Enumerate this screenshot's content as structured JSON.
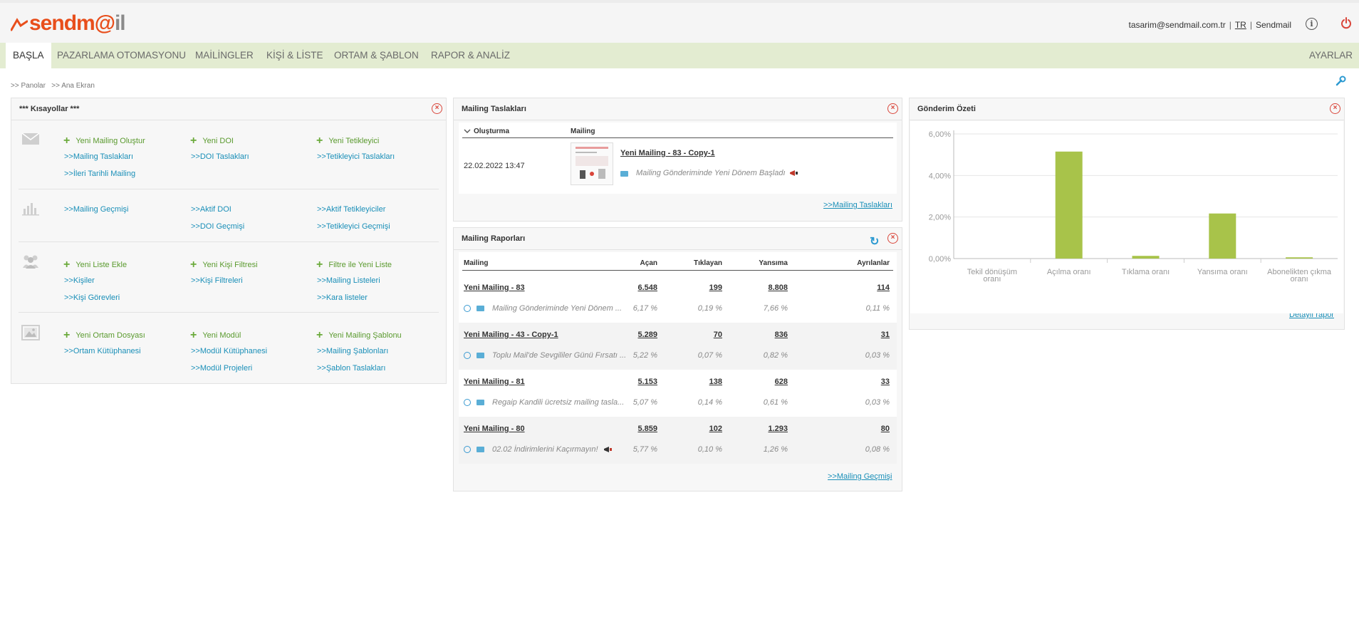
{
  "brand": {
    "part1": "send",
    "part2": "m@",
    "part3": "il"
  },
  "user": {
    "email": "tasarim@sendmail.com.tr",
    "lang": "TR",
    "account": "Sendmail"
  },
  "nav": {
    "items": [
      "BAŞLA",
      "PAZARLAMA OTOMASYONU",
      "MAİLİNGLER",
      "KİŞİ & LİSTE",
      "ORTAM & ŞABLON",
      "RAPOR & ANALİZ"
    ],
    "settings": "AYARLAR"
  },
  "breadcrumb": {
    "item1": ">> Panolar",
    "item2": ">> Ana Ekran"
  },
  "shortcuts": {
    "title": "*** Kısayollar ***",
    "row1": {
      "col1_add": "Yeni Mailing Oluştur",
      "col1_l1": ">>Mailing Taslakları",
      "col1_l2": ">>İleri Tarihli Mailing",
      "col2_add": "Yeni DOI",
      "col2_l1": ">>DOI Taslakları",
      "col3_add": "Yeni Tetikleyici",
      "col3_l1": ">>Tetikleyici Taslakları"
    },
    "row2": {
      "col1_l1": ">>Mailing Geçmişi",
      "col2_l1": ">>Aktif DOI",
      "col2_l2": ">>DOI Geçmişi",
      "col3_l1": ">>Aktif Tetikleyiciler",
      "col3_l2": ">>Tetikleyici Geçmişi"
    },
    "row3": {
      "col1_add": "Yeni Liste Ekle",
      "col1_l1": ">>Kişiler",
      "col1_l2": ">>Kişi Görevleri",
      "col2_add": "Yeni Kişi Filtresi",
      "col2_l1": ">>Kişi Filtreleri",
      "col3_add": "Filtre ile Yeni Liste",
      "col3_l1": ">>Mailing Listeleri",
      "col3_l2": ">>Kara listeler"
    },
    "row4": {
      "col1_add": "Yeni Ortam Dosyası",
      "col1_l1": ">>Ortam Kütüphanesi",
      "col2_add": "Yeni Modül",
      "col2_l1": ">>Modül Kütüphanesi",
      "col2_l2": ">>Modül Projeleri",
      "col3_add": "Yeni Mailing Şablonu",
      "col3_l1": ">>Mailing Şablonları",
      "col3_l2": ">>Şablon Taslakları"
    }
  },
  "drafts": {
    "title": "Mailing Taslakları",
    "col_created": "Oluşturma",
    "col_mailing": "Mailing",
    "row": {
      "date": "22.02.2022 13:47",
      "name": "Yeni Mailing - 83 - Copy-1",
      "subject": "Mailing Gönderiminde Yeni Dönem Başladı"
    },
    "footer_link": ">>Mailing Taslakları"
  },
  "reports": {
    "title": "Mailing Raporları",
    "columns": [
      "Mailing",
      "Açan",
      "Tıklayan",
      "Yansıma",
      "Ayrılanlar"
    ],
    "rows": [
      {
        "name": "Yeni Mailing - 83",
        "open": "6.548",
        "click": "199",
        "bounce": "8.808",
        "unsub": "114",
        "subject": "Mailing Gönderiminde Yeni Dönem ...",
        "open_pct": "6,17 %",
        "click_pct": "0,19 %",
        "bounce_pct": "7,66 %",
        "unsub_pct": "0,11 %"
      },
      {
        "name": "Yeni Mailing - 43 - Copy-1",
        "open": "5.289",
        "click": "70",
        "bounce": "836",
        "unsub": "31",
        "subject": "Toplu Mail'de Sevgililer Günü Fırsatı ...",
        "open_pct": "5,22 %",
        "click_pct": "0,07 %",
        "bounce_pct": "0,82 %",
        "unsub_pct": "0,03 %"
      },
      {
        "name": "Yeni Mailing - 81",
        "open": "5.153",
        "click": "138",
        "bounce": "628",
        "unsub": "33",
        "subject": "Regaip Kandili ücretsiz mailing tasla...",
        "open_pct": "5,07 %",
        "click_pct": "0,14 %",
        "bounce_pct": "0,61 %",
        "unsub_pct": "0,03 %"
      },
      {
        "name": "Yeni Mailing - 80",
        "open": "5.859",
        "click": "102",
        "bounce": "1.293",
        "unsub": "80",
        "subject": "02.02 İndirimlerini Kaçırmayın!",
        "open_pct": "5,77 %",
        "click_pct": "0,10 %",
        "bounce_pct": "1,26 %",
        "unsub_pct": "0,08 %"
      }
    ],
    "footer_link": ">>Mailing Geçmişi"
  },
  "summary": {
    "title": "Gönderim Özeti",
    "footer_link": "Detaylı rapor"
  },
  "chart_data": {
    "type": "bar",
    "categories": [
      "Tekil dönüşüm oranı",
      "Açılma oranı",
      "Tıklama oranı",
      "Yansıma oranı",
      "Abonelikten çıkma oranı"
    ],
    "values": [
      0.0,
      5.15,
      0.13,
      2.17,
      0.06
    ],
    "ytick_labels": [
      "0,00%",
      "2,00%",
      "4,00%",
      "6,00%"
    ],
    "ylim": [
      0,
      6
    ],
    "grid": true,
    "bar_color": "#a8c34a"
  },
  "colors": {
    "accent": "#e84e1b",
    "nav_bg": "#e3ecd1",
    "link": "#1a8fb8",
    "add": "#5a9a2e",
    "close": "#d9453a"
  }
}
